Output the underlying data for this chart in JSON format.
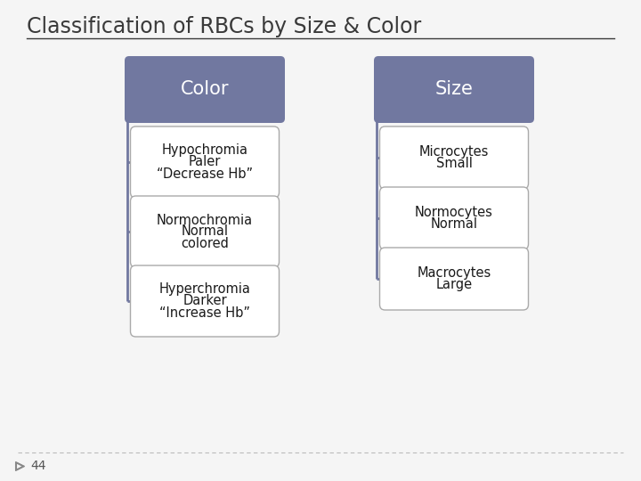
{
  "title": "Classification of RBCs by Size & Color",
  "title_fontsize": 17,
  "title_color": "#3a3a3a",
  "background_color": "#f5f5f5",
  "header_color": "#7178a0",
  "header_text_color": "#ffffff",
  "box_facecolor": "#ffffff",
  "box_edgecolor": "#aaaaaa",
  "text_color": "#1a1a1a",
  "left_header": "Color",
  "right_header": "Size",
  "left_items": [
    [
      "Hypochromia",
      "Paler",
      "“Decrease Hb”"
    ],
    [
      "Normochromia",
      "Normal",
      "colored"
    ],
    [
      "Hyperchromia",
      "Darker",
      "“Increase Hb”"
    ]
  ],
  "right_items": [
    [
      "Microcytes",
      "Small"
    ],
    [
      "Normocytes",
      "Normal"
    ],
    [
      "Macrocytes",
      "Large"
    ]
  ],
  "slide_number": "44",
  "footer_line_color": "#bbbbbb",
  "line_color": "#7178a0"
}
